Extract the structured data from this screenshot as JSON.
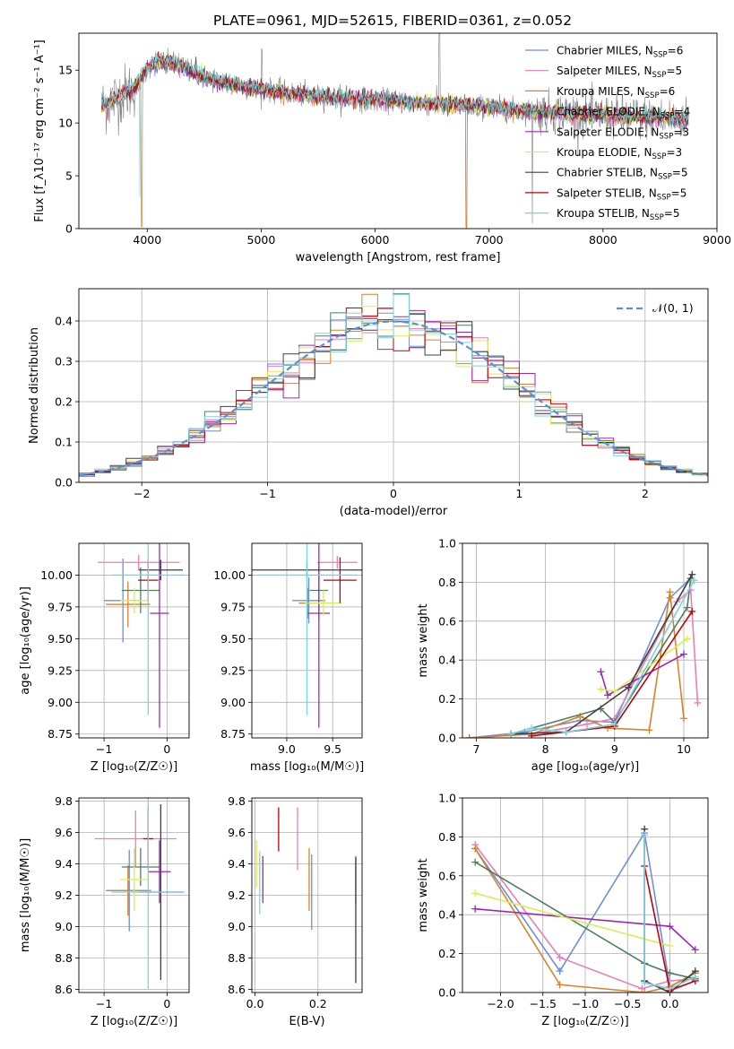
{
  "title": "PLATE=0961, MJD=52615, FIBERID=0361, z=0.052",
  "colors": {
    "chabrier_miles": "#6f8fd6",
    "salpeter_miles": "#e87fb8",
    "kroupa_miles": "#d9822b",
    "chabrier_elodie": "#4f7f5f",
    "salpeter_elodie": "#9d29b3",
    "kroupa_elodie": "#d8ef50",
    "chabrier_stelib": "#404040",
    "salpeter_stelib": "#c0000b",
    "kroupa_stelib": "#79d3e3",
    "data": "#808080",
    "gaussian": "#5b8fd6"
  },
  "chart_data": [
    {
      "id": "spectrum",
      "type": "line",
      "xlabel": "wavelength [Angstrom, rest frame]",
      "ylabel": "Flux [f_λ10⁻¹⁷ erg cm⁻² s⁻¹ A⁻¹]",
      "xlim": [
        3400,
        9000
      ],
      "ylim": [
        0,
        18.5
      ],
      "xticks": [
        "4000",
        "5000",
        "6000",
        "7000",
        "8000",
        "9000"
      ],
      "yticks": [
        "0",
        "5",
        "10",
        "15"
      ],
      "legend_position": "right",
      "series": [
        {
          "name": "Chabrier MILES, N",
          "sub": "SSP",
          "tail": "=6",
          "color": "#6f8fd6"
        },
        {
          "name": "Salpeter MILES, N",
          "sub": "SSP",
          "tail": "=5",
          "color": "#e87fb8"
        },
        {
          "name": "Kroupa MILES, N",
          "sub": "SSP",
          "tail": "=6",
          "color": "#d9822b"
        },
        {
          "name": "Chabrier ELODIE, N",
          "sub": "SSP",
          "tail": "=4",
          "color": "#4f7f5f"
        },
        {
          "name": "Salpeter ELODIE, N",
          "sub": "SSP",
          "tail": "=3",
          "color": "#9d29b3"
        },
        {
          "name": "Kroupa ELODIE, N",
          "sub": "SSP",
          "tail": "=3",
          "color": "#d8ef50"
        },
        {
          "name": "Chabrier STELIB, N",
          "sub": "SSP",
          "tail": "=5",
          "color": "#404040"
        },
        {
          "name": "Salpeter STELIB, N",
          "sub": "SSP",
          "tail": "=5",
          "color": "#c0000b"
        },
        {
          "name": "Kroupa STELIB, N",
          "sub": "SSP",
          "tail": "=5",
          "color": "#79d3e3"
        }
      ],
      "continuum": [
        [
          3600,
          11.5
        ],
        [
          3700,
          12.2
        ],
        [
          3800,
          12.8
        ],
        [
          3900,
          13.4
        ],
        [
          4000,
          15.2
        ],
        [
          4100,
          15.8
        ],
        [
          4200,
          15.7
        ],
        [
          4300,
          15.4
        ],
        [
          4400,
          14.8
        ],
        [
          4600,
          14.0
        ],
        [
          4800,
          13.5
        ],
        [
          5000,
          13.2
        ],
        [
          5200,
          12.9
        ],
        [
          5500,
          12.5
        ],
        [
          6000,
          12.2
        ],
        [
          6500,
          11.8
        ],
        [
          7000,
          11.5
        ],
        [
          7500,
          11.0
        ],
        [
          8000,
          10.7
        ],
        [
          8500,
          10.5
        ],
        [
          8750,
          10.4
        ]
      ]
    },
    {
      "id": "histogram",
      "type": "step",
      "xlabel": "(data-model)/error",
      "ylabel": "Normed distribution",
      "xlim": [
        -2.5,
        2.5
      ],
      "ylim": [
        0,
        0.48
      ],
      "xticks": [
        "−2",
        "−1",
        "0",
        "1",
        "2"
      ],
      "yticks": [
        "0.0",
        "0.1",
        "0.2",
        "0.3",
        "0.4"
      ],
      "gaussian_label": "𝒩(0, 1)",
      "legend_position": "upper right"
    },
    {
      "id": "age_vs_Z",
      "type": "errorbar",
      "xlabel": "Z [log₁₀(Z/Z☉)]",
      "ylabel": "age  [log₁₀(age/yr)]",
      "xlim": [
        -1.4,
        0.35
      ],
      "ylim": [
        8.72,
        10.25
      ],
      "xticks": [
        "−1",
        "0"
      ],
      "yticks": [
        "8.75",
        "9.00",
        "9.25",
        "9.50",
        "9.75",
        "10.00"
      ],
      "points": [
        {
          "c": "#6f8fd6",
          "x": -0.7,
          "xe": 0.3,
          "y": 9.8,
          "ye": 0.33
        },
        {
          "c": "#e87fb8",
          "x": -0.45,
          "xe": 0.65,
          "y": 10.1,
          "ye": 0.06
        },
        {
          "c": "#d9822b",
          "x": -0.62,
          "xe": 0.35,
          "y": 9.77,
          "ye": 0.18
        },
        {
          "c": "#4f7f5f",
          "x": -0.42,
          "xe": 0.3,
          "y": 9.88,
          "ye": 0.18
        },
        {
          "c": "#9d29b3",
          "x": -0.12,
          "xe": 0.15,
          "y": 9.7,
          "ye": 0.9
        },
        {
          "c": "#d8ef50",
          "x": -0.52,
          "xe": 0.22,
          "y": 9.8,
          "ye": 0.1
        },
        {
          "c": "#404040",
          "x": -0.1,
          "xe": 0.35,
          "y": 10.04,
          "ye": 0.08
        },
        {
          "c": "#c0000b",
          "x": -0.3,
          "xe": 0.16,
          "y": 9.96,
          "ye": 0.16
        },
        {
          "c": "#79d3e3",
          "x": -0.3,
          "xe": 0.58,
          "y": 10.0,
          "ye": 1.1
        }
      ]
    },
    {
      "id": "age_vs_mass",
      "type": "errorbar",
      "xlabel": "mass [log₁₀(M/M☉)]",
      "ylabel": "",
      "xlim": [
        8.62,
        9.82
      ],
      "ylim": [
        8.72,
        10.25
      ],
      "xticks": [
        "9.0",
        "9.5"
      ],
      "yticks": [
        "8.75",
        "9.00",
        "9.25",
        "9.50",
        "9.75",
        "10.00"
      ],
      "points": [
        {
          "c": "#6f8fd6",
          "x": 9.24,
          "xe": 0.18,
          "y": 9.8,
          "ye": 0.18
        },
        {
          "c": "#e87fb8",
          "x": 9.55,
          "xe": 0.22,
          "y": 10.1,
          "ye": 0.05
        },
        {
          "c": "#d9822b",
          "x": 9.23,
          "xe": 0.1,
          "y": 9.78,
          "ye": 0.12
        },
        {
          "c": "#4f7f5f",
          "x": 9.35,
          "xe": 0.1,
          "y": 9.88,
          "ye": 0.22
        },
        {
          "c": "#9d29b3",
          "x": 9.35,
          "xe": 0.12,
          "y": 9.7,
          "ye": 0.9
        },
        {
          "c": "#d8ef50",
          "x": 9.4,
          "xe": 0.2,
          "y": 9.78,
          "ye": 0.1
        },
        {
          "c": "#404040",
          "x": 9.22,
          "xe": 0.6,
          "y": 10.04,
          "ye": 0.06
        },
        {
          "c": "#c0000b",
          "x": 9.58,
          "xe": 0.18,
          "y": 9.96,
          "ye": 0.18
        },
        {
          "c": "#79d3e3",
          "x": 9.22,
          "xe": 0.55,
          "y": 10.0,
          "ye": 1.1
        }
      ]
    },
    {
      "id": "weight_vs_age",
      "type": "line",
      "xlabel": "age  [log₁₀(age/yr)]",
      "ylabel": "mass weight",
      "xlim": [
        6.8,
        10.35
      ],
      "ylim": [
        0,
        1
      ],
      "xticks": [
        "7",
        "8",
        "9",
        "10"
      ],
      "yticks": [
        "0.0",
        "0.2",
        "0.4",
        "0.6",
        "0.8",
        "1.0"
      ],
      "series": [
        {
          "c": "#6f8fd6",
          "x": [
            6.9,
            7.7,
            8.5,
            9.0,
            9.8,
            10.1
          ],
          "y": [
            0.0,
            0.03,
            0.09,
            0.08,
            0.72,
            0.82
          ]
        },
        {
          "c": "#e87fb8",
          "x": [
            6.9,
            7.8,
            8.6,
            9.0,
            9.9,
            10.1,
            10.2
          ],
          "y": [
            0.0,
            0.02,
            0.07,
            0.1,
            0.7,
            0.76,
            0.18
          ]
        },
        {
          "c": "#d9822b",
          "x": [
            6.9,
            7.8,
            8.5,
            8.9,
            9.5,
            9.8,
            10.0
          ],
          "y": [
            0.0,
            0.02,
            0.11,
            0.05,
            0.04,
            0.75,
            0.1
          ]
        },
        {
          "c": "#4f7f5f",
          "x": [
            7.5,
            8.8,
            9.0,
            10.05,
            10.1
          ],
          "y": [
            0.02,
            0.15,
            0.08,
            0.67,
            0.82
          ]
        },
        {
          "c": "#9d29b3",
          "x": [
            8.8,
            8.9,
            10.0
          ],
          "y": [
            0.34,
            0.22,
            0.43
          ]
        },
        {
          "c": "#d8ef50",
          "x": [
            8.8,
            9.0,
            10.05
          ],
          "y": [
            0.25,
            0.24,
            0.51
          ]
        },
        {
          "c": "#404040",
          "x": [
            7.5,
            8.3,
            9.2,
            10.12
          ],
          "y": [
            0.02,
            0.03,
            0.26,
            0.84
          ]
        },
        {
          "c": "#c0000b",
          "x": [
            7.8,
            9.0,
            10.12
          ],
          "y": [
            0.01,
            0.06,
            0.65
          ]
        },
        {
          "c": "#79d3e3",
          "x": [
            7.5,
            7.8,
            8.3,
            9.0,
            10.15
          ],
          "y": [
            0.02,
            0.05,
            0.03,
            0.07,
            0.81
          ]
        }
      ]
    },
    {
      "id": "mass_vs_Z",
      "type": "errorbar",
      "xlabel": "Z [log₁₀(Z/Z☉)]",
      "ylabel": "mass [log₁₀(M/M☉)]",
      "xlim": [
        -1.4,
        0.35
      ],
      "ylim": [
        8.58,
        9.82
      ],
      "xticks": [
        "−1",
        "0"
      ],
      "yticks": [
        "8.6",
        "8.8",
        "9.0",
        "9.2",
        "9.4",
        "9.6",
        "9.8"
      ],
      "points": [
        {
          "c": "#6f8fd6",
          "x": -0.6,
          "xe": 0.35,
          "y": 9.23,
          "ye": 0.26
        },
        {
          "c": "#e87fb8",
          "x": -0.5,
          "xe": 0.65,
          "y": 9.56,
          "ye": 0.18
        },
        {
          "c": "#d9822b",
          "x": -0.62,
          "xe": 0.35,
          "y": 9.23,
          "ye": 0.16
        },
        {
          "c": "#4f7f5f",
          "x": -0.42,
          "xe": 0.3,
          "y": 9.38,
          "ye": 0.12
        },
        {
          "c": "#9d29b3",
          "x": -0.12,
          "xe": 0.18,
          "y": 9.35,
          "ye": 0.2
        },
        {
          "c": "#d8ef50",
          "x": -0.52,
          "xe": 0.22,
          "y": 9.3,
          "ye": 0.2
        },
        {
          "c": "#404040",
          "x": -0.1,
          "xe": 0.35,
          "y": 9.22,
          "ye": 0.56
        },
        {
          "c": "#c0000b",
          "x": -0.3,
          "xe": 0.08,
          "y": 9.56,
          "ye": 0.2
        },
        {
          "c": "#79d3e3",
          "x": -0.3,
          "xe": 0.58,
          "y": 9.22,
          "ye": 0.62
        }
      ]
    },
    {
      "id": "mass_vs_EBV",
      "type": "errorbar",
      "xlabel": "E(B-V)",
      "ylabel": "",
      "xlim": [
        -0.01,
        0.34
      ],
      "ylim": [
        8.58,
        9.82
      ],
      "xticks": [
        "0.0",
        "0.2"
      ],
      "yticks": [
        "8.6",
        "8.8",
        "9.0",
        "9.2",
        "9.4",
        "9.6",
        "9.8"
      ],
      "points": [
        {
          "c": "#6f8fd6",
          "x": 0.18,
          "xe": 0,
          "y": 9.22,
          "ye": 0.24
        },
        {
          "c": "#e87fb8",
          "x": 0.135,
          "xe": 0,
          "y": 9.56,
          "ye": 0.2
        },
        {
          "c": "#d9822b",
          "x": 0.172,
          "xe": 0,
          "y": 9.3,
          "ye": 0.2
        },
        {
          "c": "#4f7f5f",
          "x": 0.32,
          "xe": 0,
          "y": 9.3,
          "ye": 0.15
        },
        {
          "c": "#9d29b3",
          "x": 0.025,
          "xe": 0,
          "y": 9.3,
          "ye": 0.15
        },
        {
          "c": "#d8ef50",
          "x": 0.005,
          "xe": 0,
          "y": 9.4,
          "ye": 0.15
        },
        {
          "c": "#404040",
          "x": 0.32,
          "xe": 0,
          "y": 9.04,
          "ye": 0.4
        },
        {
          "c": "#c0000b",
          "x": 0.075,
          "xe": 0,
          "y": 9.62,
          "ye": 0.14
        },
        {
          "c": "#79d3e3",
          "x": 0.015,
          "xe": 0,
          "y": 9.28,
          "ye": 0.2
        }
      ]
    },
    {
      "id": "weight_vs_Z",
      "type": "line",
      "xlabel": "Z [log₁₀(Z/Z☉)]",
      "ylabel": "mass weight",
      "xlim": [
        -2.45,
        0.45
      ],
      "ylim": [
        0,
        1
      ],
      "xticks": [
        "−2.0",
        "−1.5",
        "−1.0",
        "−0.5",
        "0.0"
      ],
      "yticks": [
        "0.0",
        "0.2",
        "0.4",
        "0.6",
        "0.8",
        "1.0"
      ],
      "series": [
        {
          "c": "#6f8fd6",
          "x": [
            -2.3,
            -1.3,
            -0.3,
            0.0,
            0.3
          ],
          "y": [
            0.74,
            0.11,
            0.82,
            0.03,
            0.1
          ]
        },
        {
          "c": "#e87fb8",
          "x": [
            -2.3,
            -1.3,
            -0.33,
            0.0,
            0.3
          ],
          "y": [
            0.76,
            0.18,
            0.02,
            0.06,
            0.07
          ]
        },
        {
          "c": "#d9822b",
          "x": [
            -2.3,
            -1.3,
            -0.3,
            0.0,
            0.3
          ],
          "y": [
            0.74,
            0.04,
            0.0,
            0.03,
            0.1
          ]
        },
        {
          "c": "#4f7f5f",
          "x": [
            -2.3,
            -0.3,
            0.0,
            0.3
          ],
          "y": [
            0.67,
            0.15,
            0.1,
            0.07
          ]
        },
        {
          "c": "#9d29b3",
          "x": [
            -2.3,
            0.0,
            0.3
          ],
          "y": [
            0.43,
            0.34,
            0.22
          ]
        },
        {
          "c": "#d8ef50",
          "x": [
            -2.3,
            0.0
          ],
          "y": [
            0.51,
            0.24
          ]
        },
        {
          "c": "#404040",
          "x": [
            -0.3,
            -0.3,
            0.0,
            0.3
          ],
          "y": [
            0.84,
            0.06,
            0.0,
            0.11
          ]
        },
        {
          "c": "#c0000b",
          "x": [
            -0.3,
            0.0,
            0.3
          ],
          "y": [
            0.65,
            0.01,
            0.06
          ]
        },
        {
          "c": "#79d3e3",
          "x": [
            -0.3,
            -0.3,
            0.0,
            0.3
          ],
          "y": [
            0.81,
            0.05,
            0.02,
            0.08
          ]
        }
      ]
    }
  ]
}
